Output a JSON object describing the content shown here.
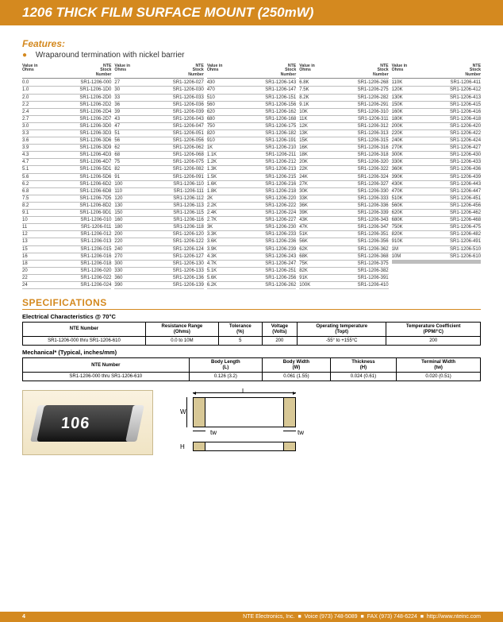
{
  "header": {
    "title": "1206 THICK FILM SURFACE MOUNT (250mW)"
  },
  "features": {
    "heading": "Features:",
    "item": "Wraparound termination with nickel barrier"
  },
  "table_head": {
    "ohms_l1": "Value in",
    "ohms_l2": "Ohms",
    "sn_l1": "NTE",
    "sn_l2": "Stock",
    "sn_l3": "Number"
  },
  "cols": [
    [
      {
        "o": "0.0",
        "s": "SR1-1206-000"
      },
      {
        "o": "1.0",
        "s": "SR1-1206-1D0"
      },
      {
        "o": "2.0",
        "s": "SR1-1206-2D0"
      },
      {
        "o": "2.2",
        "s": "SR1-1206-2D2"
      },
      {
        "o": "2.4",
        "s": "SR1-1206-2D4"
      },
      {
        "o": "2.7",
        "s": "SR1-1206-2D7"
      },
      {
        "o": "3.0",
        "s": "SR1-1206-3D0"
      },
      {
        "o": "3.3",
        "s": "SR1-1206-3D3"
      },
      {
        "o": "3.6",
        "s": "SR1-1206-3D6"
      },
      {
        "o": "3.9",
        "s": "SR1-1206-3D9"
      },
      {
        "o": "4.3",
        "s": "SR1-1206-4D3"
      },
      {
        "o": "4.7",
        "s": "SR1-1206-4D7"
      },
      {
        "o": "5.1",
        "s": "SR1-1206-5D1"
      },
      {
        "o": "5.6",
        "s": "SR1-1206-5D6"
      },
      {
        "o": "6.2",
        "s": "SR1-1206-6D2"
      },
      {
        "o": "6.8",
        "s": "SR1-1206-6D8"
      },
      {
        "o": "7.5",
        "s": "SR1-1206-7D5"
      },
      {
        "o": "8.2",
        "s": "SR1-1206-8D2"
      },
      {
        "o": "9.1",
        "s": "SR1-1206-9D1"
      },
      {
        "o": "10",
        "s": "SR1-1206-010"
      },
      {
        "o": "11",
        "s": "SR1-1206-011"
      },
      {
        "o": "12",
        "s": "SR1-1206-012"
      },
      {
        "o": "13",
        "s": "SR1-1206-013"
      },
      {
        "o": "15",
        "s": "SR1-1206-015"
      },
      {
        "o": "16",
        "s": "SR1-1206-016"
      },
      {
        "o": "18",
        "s": "SR1-1206-018"
      },
      {
        "o": "20",
        "s": "SR1-1206-020"
      },
      {
        "o": "22",
        "s": "SR1-1206-022"
      },
      {
        "o": "24",
        "s": "SR1-1206-024"
      }
    ],
    [
      {
        "o": "27",
        "s": "SR1-1206-027"
      },
      {
        "o": "30",
        "s": "SR1-1206-030"
      },
      {
        "o": "33",
        "s": "SR1-1206-033"
      },
      {
        "o": "36",
        "s": "SR1-1206-036"
      },
      {
        "o": "39",
        "s": "SR1-1206-039"
      },
      {
        "o": "43",
        "s": "SR1-1206-043"
      },
      {
        "o": "47",
        "s": "SR1-1206-047"
      },
      {
        "o": "51",
        "s": "SR1-1206-051"
      },
      {
        "o": "56",
        "s": "SR1-1206-056"
      },
      {
        "o": "62",
        "s": "SR1-1206-062"
      },
      {
        "o": "68",
        "s": "SR1-1206-068"
      },
      {
        "o": "75",
        "s": "SR1-1206-075"
      },
      {
        "o": "82",
        "s": "SR1-1206-082"
      },
      {
        "o": "91",
        "s": "SR1-1206-091"
      },
      {
        "o": "100",
        "s": "SR1-1206-110"
      },
      {
        "o": "110",
        "s": "SR1-1206-111"
      },
      {
        "o": "120",
        "s": "SR1-1206-112"
      },
      {
        "o": "130",
        "s": "SR1-1206-113"
      },
      {
        "o": "150",
        "s": "SR1-1206-115"
      },
      {
        "o": "160",
        "s": "SR1-1206-116"
      },
      {
        "o": "180",
        "s": "SR1-1206-118"
      },
      {
        "o": "200",
        "s": "SR1-1206-120"
      },
      {
        "o": "220",
        "s": "SR1-1206-122"
      },
      {
        "o": "240",
        "s": "SR1-1206-124"
      },
      {
        "o": "270",
        "s": "SR1-1206-127"
      },
      {
        "o": "300",
        "s": "SR1-1206-130"
      },
      {
        "o": "330",
        "s": "SR1-1206-133"
      },
      {
        "o": "360",
        "s": "SR1-1206-136"
      },
      {
        "o": "390",
        "s": "SR1-1206-139"
      }
    ],
    [
      {
        "o": "430",
        "s": "SR1-1206-143"
      },
      {
        "o": "470",
        "s": "SR1-1206-147"
      },
      {
        "o": "510",
        "s": "SR1-1206-151"
      },
      {
        "o": "560",
        "s": "SR1-1206-156"
      },
      {
        "o": "620",
        "s": "SR1-1206-162"
      },
      {
        "o": "680",
        "s": "SR1-1206-168"
      },
      {
        "o": "750",
        "s": "SR1-1206-175"
      },
      {
        "o": "820",
        "s": "SR1-1206-182"
      },
      {
        "o": "910",
        "s": "SR1-1206-191"
      },
      {
        "o": "1K",
        "s": "SR1-1206-210"
      },
      {
        "o": "1.1K",
        "s": "SR1-1206-211"
      },
      {
        "o": "1.2K",
        "s": "SR1-1206-212"
      },
      {
        "o": "1.3K",
        "s": "SR1-1206-213"
      },
      {
        "o": "1.5K",
        "s": "SR1-1206-215"
      },
      {
        "o": "1.6K",
        "s": "SR1-1206-216"
      },
      {
        "o": "1.8K",
        "s": "SR1-1206-218"
      },
      {
        "o": "2K",
        "s": "SR1-1206-220"
      },
      {
        "o": "2.2K",
        "s": "SR1-1206-222"
      },
      {
        "o": "2.4K",
        "s": "SR1-1206-224"
      },
      {
        "o": "2.7K",
        "s": "SR1-1206-227"
      },
      {
        "o": "3K",
        "s": "SR1-1206-230"
      },
      {
        "o": "3.3K",
        "s": "SR1-1206-233"
      },
      {
        "o": "3.6K",
        "s": "SR1-1206-236"
      },
      {
        "o": "3.9K",
        "s": "SR1-1206-239"
      },
      {
        "o": "4.3K",
        "s": "SR1-1206-243"
      },
      {
        "o": "4.7K",
        "s": "SR1-1206-247"
      },
      {
        "o": "5.1K",
        "s": "SR1-1206-251"
      },
      {
        "o": "5.6K",
        "s": "SR1-1206-256"
      },
      {
        "o": "6.2K",
        "s": "SR1-1206-262"
      }
    ],
    [
      {
        "o": "6.8K",
        "s": "SR1-1206-268"
      },
      {
        "o": "7.5K",
        "s": "SR1-1206-275"
      },
      {
        "o": "8.2K",
        "s": "SR1-1206-282"
      },
      {
        "o": "9.1K",
        "s": "SR1-1206-291"
      },
      {
        "o": "10K",
        "s": "SR1-1206-310"
      },
      {
        "o": "11K",
        "s": "SR1-1206-311"
      },
      {
        "o": "12K",
        "s": "SR1-1206-312"
      },
      {
        "o": "13K",
        "s": "SR1-1206-313"
      },
      {
        "o": "15K",
        "s": "SR1-1206-315"
      },
      {
        "o": "16K",
        "s": "SR1-1206-316"
      },
      {
        "o": "18K",
        "s": "SR1-1206-318"
      },
      {
        "o": "20K",
        "s": "SR1-1206-320"
      },
      {
        "o": "22K",
        "s": "SR1-1206-322"
      },
      {
        "o": "24K",
        "s": "SR1-1206-324"
      },
      {
        "o": "27K",
        "s": "SR1-1206-327"
      },
      {
        "o": "30K",
        "s": "SR1-1206-330"
      },
      {
        "o": "33K",
        "s": "SR1-1206-333"
      },
      {
        "o": "36K",
        "s": "SR1-1206-336"
      },
      {
        "o": "39K",
        "s": "SR1-1206-339"
      },
      {
        "o": "43K",
        "s": "SR1-1206-343"
      },
      {
        "o": "47K",
        "s": "SR1-1206-347"
      },
      {
        "o": "51K",
        "s": "SR1-1206-351"
      },
      {
        "o": "56K",
        "s": "SR1-1206-356"
      },
      {
        "o": "62K",
        "s": "SR1-1206-362"
      },
      {
        "o": "68K",
        "s": "SR1-1206-368"
      },
      {
        "o": "75K",
        "s": "SR1-1206-375"
      },
      {
        "o": "82K",
        "s": "SR1-1206-382"
      },
      {
        "o": "91K",
        "s": "SR1-1206-391"
      },
      {
        "o": "100K",
        "s": "SR1-1206-410"
      }
    ],
    [
      {
        "o": "110K",
        "s": "SR1-1206-411"
      },
      {
        "o": "120K",
        "s": "SR1-1206-412"
      },
      {
        "o": "130K",
        "s": "SR1-1206-413"
      },
      {
        "o": "150K",
        "s": "SR1-1206-415"
      },
      {
        "o": "160K",
        "s": "SR1-1206-416"
      },
      {
        "o": "180K",
        "s": "SR1-1206-418"
      },
      {
        "o": "200K",
        "s": "SR1-1206-420"
      },
      {
        "o": "220K",
        "s": "SR1-1206-422"
      },
      {
        "o": "240K",
        "s": "SR1-1206-424"
      },
      {
        "o": "270K",
        "s": "SR1-1206-427"
      },
      {
        "o": "300K",
        "s": "SR1-1206-430"
      },
      {
        "o": "330K",
        "s": "SR1-1206-433"
      },
      {
        "o": "360K",
        "s": "SR1-1206-436"
      },
      {
        "o": "390K",
        "s": "SR1-1206-439"
      },
      {
        "o": "430K",
        "s": "SR1-1206-443"
      },
      {
        "o": "470K",
        "s": "SR1-1206-447"
      },
      {
        "o": "510K",
        "s": "SR1-1206-451"
      },
      {
        "o": "560K",
        "s": "SR1-1206-456"
      },
      {
        "o": "620K",
        "s": "SR1-1206-462"
      },
      {
        "o": "680K",
        "s": "SR1-1206-468"
      },
      {
        "o": "750K",
        "s": "SR1-1206-475"
      },
      {
        "o": "820K",
        "s": "SR1-1206-482"
      },
      {
        "o": "910K",
        "s": "SR1-1206-491"
      },
      {
        "o": "1M",
        "s": "SR1-1206-510"
      },
      {
        "o": "10M",
        "s": "SR1-1206-610"
      },
      {
        "o": "",
        "s": ""
      },
      {
        "o": "",
        "s": ""
      },
      {
        "o": "",
        "s": ""
      },
      {
        "o": "",
        "s": ""
      }
    ]
  ],
  "specs": {
    "heading": "SPECIFICATIONS",
    "elec_heading": "Electrical Characteristics @ 70°C",
    "elec_head": [
      "NTE Number",
      "Resistance Range\n(Ohms)",
      "Tolerance\n(%)",
      "Voltage\n(Volts)",
      "Operating temperature\n(Topt)",
      "Temperature Coefficient\n(PPM/°C)"
    ],
    "elec_row": [
      "SR1-1206-000 thru SR1-1206-610",
      "0.0 to 10M",
      "5",
      "200",
      "-55° to +155°C",
      "200"
    ],
    "mech_heading": "Mechanical* (Typical, inches/mm)",
    "mech_head": [
      "NTE Number",
      "Body Length\n(L)",
      "Body Width\n(W)",
      "Thickness\n(H)",
      "Terminal Width\n(tw)"
    ],
    "mech_row": [
      "SR1-1206-000 thru SR1-1206-610",
      "0.126 (3.2)",
      "0.061 (1.55)",
      "0.024 (0.61)",
      "0.020 (0.51)"
    ]
  },
  "resistor": {
    "marking": "106"
  },
  "dims": {
    "L": "L",
    "W": "W",
    "H": "H",
    "tw": "tw"
  },
  "footer": {
    "page": "4",
    "company": "NTE Electronics, Inc.",
    "voice": "Voice (973) 748-5089",
    "fax": "FAX (973) 748-6224",
    "url": "http://www.nteinc.com"
  },
  "colors": {
    "accent": "#d4891f",
    "term_fill": "#d8c896",
    "img_bg": "#faf2e0"
  }
}
